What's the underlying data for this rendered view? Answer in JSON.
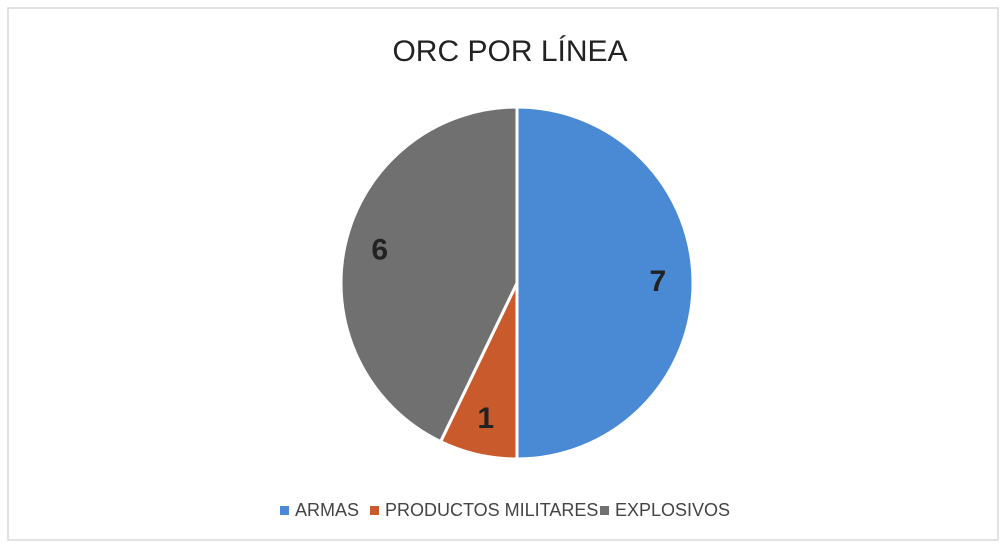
{
  "chart_data": {
    "type": "pie",
    "title": "ORC POR LÍNEA",
    "categories": [
      "ARMAS",
      "PRODUCTOS MILITARES",
      "EXPLOSIVOS"
    ],
    "values": [
      7,
      1,
      6
    ],
    "colors": [
      "#4a8ad4",
      "#c85a2c",
      "#707070"
    ],
    "legend": "bottom"
  }
}
